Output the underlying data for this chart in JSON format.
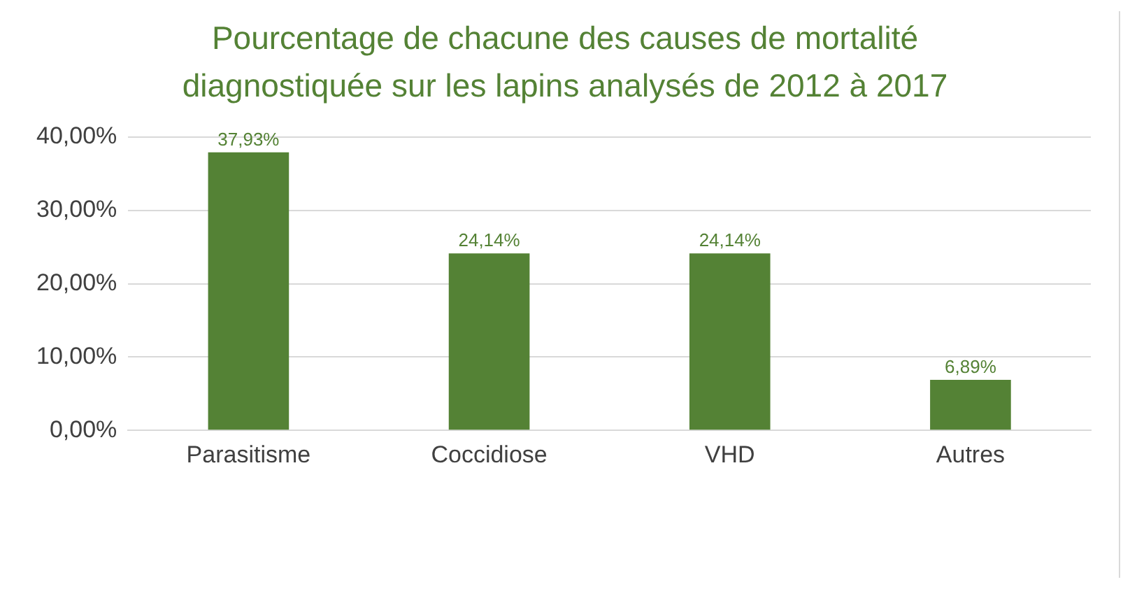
{
  "chart_data": {
    "type": "bar",
    "title": "Pourcentage de chacune des causes de mortalité diagnostiquée sur les lapins analysés de 2012 à 2017",
    "categories": [
      "Parasitisme",
      "Coccidiose",
      "VHD",
      "Autres"
    ],
    "values": [
      37.93,
      24.14,
      24.14,
      6.89
    ],
    "value_labels": [
      "37,93%",
      "24,14%",
      "24,14%",
      "6,89%"
    ],
    "color": "#548235",
    "ylim": [
      0,
      40
    ],
    "yticks": [
      {
        "value": 0,
        "label": "0,00%"
      },
      {
        "value": 10,
        "label": "10,00%"
      },
      {
        "value": 20,
        "label": "20,00%"
      },
      {
        "value": 30,
        "label": "30,00%"
      },
      {
        "value": 40,
        "label": "40,00%"
      }
    ],
    "grid": "y",
    "legend": false
  }
}
